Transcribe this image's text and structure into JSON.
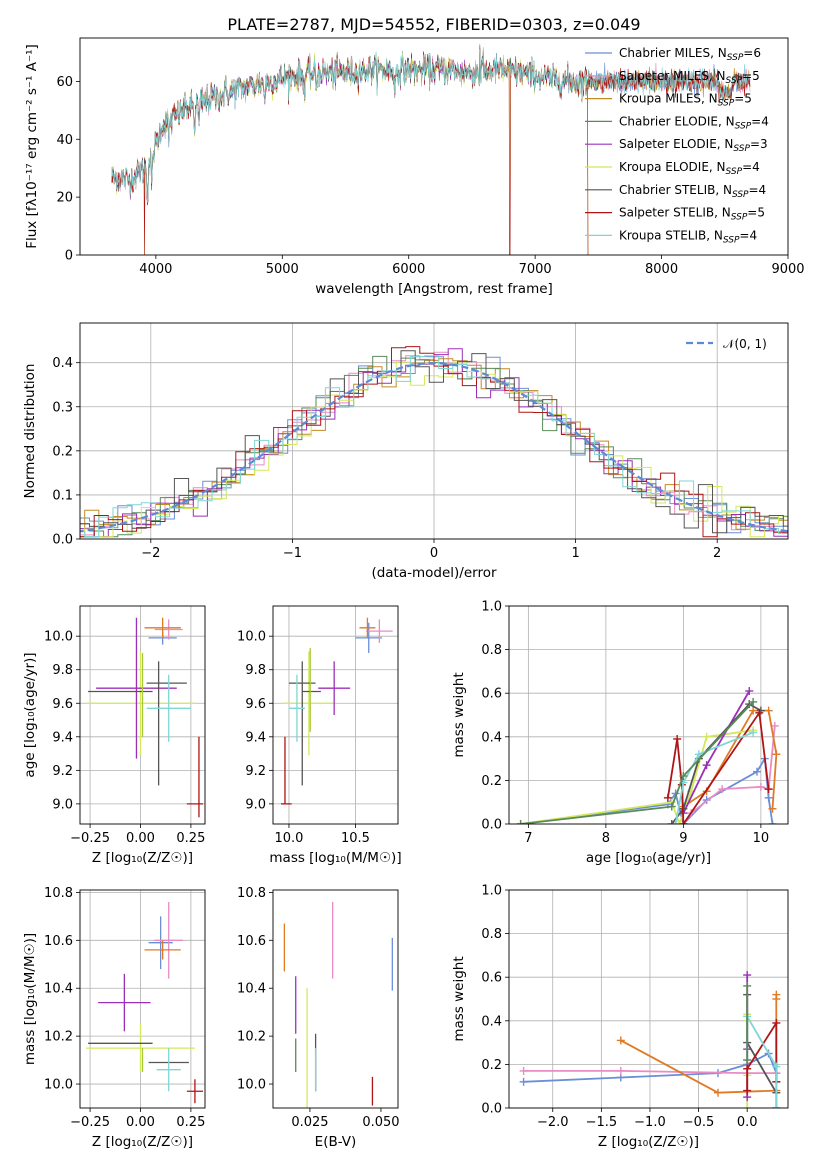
{
  "figure": {
    "title": "PLATE=2787, MJD=54552, FIBERID=0303, z=0.049"
  },
  "chart_data": [
    {
      "id": "spectrum",
      "type": "line",
      "xlabel": "wavelength [Angstrom, rest frame]",
      "ylabel": "Flux [fλ10⁻¹⁷ erg cm⁻² s⁻¹ A⁻¹]",
      "xlim": [
        3400,
        9000
      ],
      "ylim": [
        0,
        75
      ],
      "xticks": [
        "4000",
        "5000",
        "6000",
        "7000",
        "8000",
        "9000"
      ],
      "yticks": [
        "0",
        "20",
        "40",
        "60"
      ],
      "legend_position": "right",
      "series": [
        {
          "name": "Chabrier MILES, N_SSP=6",
          "label_main": "Chabrier MILES, N",
          "label_sub": "SSP",
          "label_tail": "=6",
          "color": "#6a8fd8"
        },
        {
          "name": "Salpeter MILES, N_SSP=5",
          "label_main": "Salpeter MILES, N",
          "label_sub": "SSP",
          "label_tail": "=5",
          "color": "#e98bc4"
        },
        {
          "name": "Kroupa MILES, N_SSP=5",
          "label_main": "Kroupa MILES, N",
          "label_sub": "SSP",
          "label_tail": "=5",
          "color": "#c48a24"
        },
        {
          "name": "Chabrier ELODIE, N_SSP=4",
          "label_main": "Chabrier ELODIE, N",
          "label_sub": "SSP",
          "label_tail": "=4",
          "color": "#5a8a5a"
        },
        {
          "name": "Salpeter ELODIE, N_SSP=3",
          "label_main": "Salpeter ELODIE, N",
          "label_sub": "SSP",
          "label_tail": "=3",
          "color": "#9b30b8"
        },
        {
          "name": "Kroupa ELODIE, N_SSP=4",
          "label_main": "Kroupa ELODIE, N",
          "label_sub": "SSP",
          "label_tail": "=4",
          "color": "#d4e85a"
        },
        {
          "name": "Chabrier STELIB, N_SSP=4",
          "label_main": "Chabrier STELIB, N",
          "label_sub": "SSP",
          "label_tail": "=4",
          "color": "#555555"
        },
        {
          "name": "Salpeter STELIB, N_SSP=5",
          "label_main": "Salpeter STELIB, N",
          "label_sub": "SSP",
          "label_tail": "=5",
          "color": "#b01515"
        },
        {
          "name": "Kroupa STELIB, N_SSP=4",
          "label_main": "Kroupa STELIB, N",
          "label_sub": "SSP",
          "label_tail": "=4",
          "color": "#7fd6d6"
        }
      ],
      "continuum": {
        "x": [
          3650,
          3800,
          3950,
          4050,
          4150,
          4300,
          4500,
          4700,
          4900,
          5100,
          5300,
          5500,
          5700,
          5900,
          6100,
          6300,
          6500,
          6700,
          6900,
          7100,
          7300,
          7420
        ],
        "y": [
          27,
          26,
          32,
          45,
          48,
          52,
          55,
          58,
          60,
          62,
          63,
          63,
          64,
          64,
          64,
          64,
          63,
          64,
          63,
          61,
          60,
          60
        ]
      },
      "absorption_lines": [
        {
          "x": 3934,
          "depth": 12
        },
        {
          "x": 3969,
          "depth": 10
        },
        {
          "x": 4102,
          "depth": 6
        },
        {
          "x": 4305,
          "depth": 10
        },
        {
          "x": 4340,
          "depth": 8
        },
        {
          "x": 4861,
          "depth": 6
        },
        {
          "x": 5175,
          "depth": 7
        },
        {
          "x": 5270,
          "depth": 4
        },
        {
          "x": 5890,
          "depth": 9
        },
        {
          "x": 6563,
          "depth": 5
        }
      ],
      "emission_lines": [
        {
          "x": 6563,
          "height": 15
        },
        {
          "x": 6584,
          "height": 6
        }
      ],
      "spikes": [
        {
          "x": 3910,
          "ymin": 0
        },
        {
          "x": 6800,
          "ymin": 0
        },
        {
          "x": 7420,
          "ymin": 0
        }
      ]
    },
    {
      "id": "residuals",
      "type": "histogram",
      "xlabel": "(data-model)/error",
      "ylabel": "Normed distribution",
      "xlim": [
        -2.5,
        2.5
      ],
      "ylim": [
        0,
        0.49
      ],
      "xticks": [
        "−2",
        "−1",
        "0",
        "1",
        "2"
      ],
      "yticks": [
        "0.0",
        "0.1",
        "0.2",
        "0.3",
        "0.4"
      ],
      "bin_width": 0.1,
      "reference_curve": {
        "name": "N(0,1)",
        "color": "#5b8bd6",
        "label_main": "𝒩(0, 1)"
      },
      "legend_position": "top-right"
    },
    {
      "id": "age_vs_Z",
      "type": "scatter",
      "xlabel": "Z [log₁₀(Z/Z☉)]",
      "ylabel": "age  [log₁₀(age/yr)]",
      "xlim": [
        -0.3,
        0.32
      ],
      "ylim": [
        8.88,
        10.18
      ],
      "xticks": [
        "−0.25",
        "0.00",
        "0.25"
      ],
      "yticks": [
        "9.0",
        "9.2",
        "9.4",
        "9.6",
        "9.8",
        "10.0"
      ],
      "points": [
        {
          "color": "#6a8fd8",
          "x": 0.11,
          "xerr": 0.07,
          "y": 9.99,
          "yerr": 0.04
        },
        {
          "color": "#e98bc4",
          "x": 0.14,
          "xerr": 0.07,
          "y": 10.04,
          "yerr": 0.06
        },
        {
          "color": "#e07a25",
          "x": 0.11,
          "xerr": 0.09,
          "y": 10.05,
          "yerr": 0.06
        },
        {
          "color": "#d4e85a",
          "x": 0.0,
          "xerr": 0.27,
          "y": 9.6,
          "yerr": 0.31
        },
        {
          "color": "#9b30b8",
          "x": -0.02,
          "xerr": 0.2,
          "y": 9.69,
          "yerr": 0.42
        },
        {
          "color": "#555555",
          "x": -0.1,
          "xerr": 0.16,
          "y": 9.67,
          "yerr": 0.0
        },
        {
          "color": "#555555",
          "x": 0.13,
          "xerr": 0.1,
          "y": 9.72,
          "yerr": 0.0
        },
        {
          "color": "#555555",
          "x": 0.09,
          "xerr": 0.0,
          "y": 9.48,
          "yerr": 0.37
        },
        {
          "color": "#7fd6d6",
          "x": 0.14,
          "xerr": 0.11,
          "y": 9.57,
          "yerr": 0.2
        },
        {
          "color": "#b01515",
          "x": 0.27,
          "xerr": 0.04,
          "y": 9.0,
          "yerr": 0.0
        },
        {
          "color": "#b01515",
          "x": 0.29,
          "xerr": 0.0,
          "y": 9.16,
          "yerr": 0.24
        },
        {
          "color": "#a8c93a",
          "x": 0.01,
          "xerr": 0.0,
          "y": 9.65,
          "yerr": 0.25
        }
      ]
    },
    {
      "id": "age_vs_mass",
      "type": "scatter",
      "xlabel": "mass [log₁₀(M/M☉)]",
      "ylabel": "",
      "xlim": [
        9.88,
        10.82
      ],
      "ylim": [
        8.88,
        10.18
      ],
      "xticks": [
        "10.0",
        "10.5"
      ],
      "yticks": [
        "9.0",
        "9.2",
        "9.4",
        "9.6",
        "9.8",
        "10.0"
      ],
      "points": [
        {
          "color": "#6a8fd8",
          "x": 10.6,
          "xerr": 0.1,
          "y": 9.99,
          "yerr": 0.09
        },
        {
          "color": "#e98bc4",
          "x": 10.68,
          "xerr": 0.1,
          "y": 10.03,
          "yerr": 0.07
        },
        {
          "color": "#e07a25",
          "x": 10.59,
          "xerr": 0.06,
          "y": 10.05,
          "yerr": 0.06
        },
        {
          "color": "#d4e85a",
          "x": 10.15,
          "xerr": 0.2,
          "y": 9.6,
          "yerr": 0.31
        },
        {
          "color": "#9b30b8",
          "x": 10.34,
          "xerr": 0.12,
          "y": 9.69,
          "yerr": 0.16
        },
        {
          "color": "#555555",
          "x": 10.1,
          "xerr": 0.1,
          "y": 9.72,
          "yerr": 0.0
        },
        {
          "color": "#555555",
          "x": 10.1,
          "xerr": 0.0,
          "y": 9.48,
          "yerr": 0.37
        },
        {
          "color": "#555555",
          "x": 10.17,
          "xerr": 0.07,
          "y": 9.67,
          "yerr": 0.0
        },
        {
          "color": "#7fd6d6",
          "x": 10.06,
          "xerr": 0.06,
          "y": 9.57,
          "yerr": 0.2
        },
        {
          "color": "#b01515",
          "x": 9.98,
          "xerr": 0.04,
          "y": 9.0,
          "yerr": 0.0
        },
        {
          "color": "#b01515",
          "x": 9.97,
          "xerr": 0.0,
          "y": 9.2,
          "yerr": 0.2
        },
        {
          "color": "#a8c93a",
          "x": 10.16,
          "xerr": 0.0,
          "y": 9.68,
          "yerr": 0.25
        }
      ]
    },
    {
      "id": "mass_weight_vs_age",
      "type": "line",
      "xlabel": "age  [log₁₀(age/yr)]",
      "ylabel": "mass weight",
      "xlim": [
        6.75,
        10.35
      ],
      "ylim": [
        0,
        1.0
      ],
      "xticks": [
        "7",
        "8",
        "9",
        "10"
      ],
      "yticks": [
        "0.0",
        "0.2",
        "0.4",
        "0.6",
        "0.8",
        "1.0"
      ],
      "series": [
        {
          "color": "#6a8fd8",
          "x": [
            6.9,
            8.8,
            8.9,
            9.0,
            9.3,
            9.95,
            10.05,
            10.1,
            10.15
          ],
          "y": [
            0.0,
            0.09,
            0.14,
            0.0,
            0.11,
            0.24,
            0.3,
            0.12,
            0.0
          ]
        },
        {
          "color": "#e98bc4",
          "x": [
            9.0,
            9.1,
            9.5,
            10.0,
            10.1,
            10.18
          ],
          "y": [
            0.0,
            0.05,
            0.16,
            0.17,
            0.16,
            0.45
          ]
        },
        {
          "color": "#e07a25",
          "x": [
            9.0,
            9.3,
            9.9,
            10.1,
            10.2,
            10.15
          ],
          "y": [
            0.08,
            0.15,
            0.52,
            0.52,
            0.32,
            0.07
          ]
        },
        {
          "color": "#d4e85a",
          "x": [
            6.9,
            8.85,
            8.95,
            9.1,
            9.3,
            9.9
          ],
          "y": [
            0.0,
            0.1,
            0.0,
            0.15,
            0.4,
            0.43
          ]
        },
        {
          "color": "#9b30b8",
          "x": [
            9.0,
            9.3,
            9.85
          ],
          "y": [
            0.05,
            0.27,
            0.61
          ]
        },
        {
          "color": "#555555",
          "x": [
            8.85,
            9.0,
            9.2,
            9.85,
            10.0
          ],
          "y": [
            0.0,
            0.07,
            0.3,
            0.55,
            0.52
          ]
        },
        {
          "color": "#b01515",
          "x": [
            8.8,
            8.92,
            8.98,
            9.0,
            9.98,
            10.1
          ],
          "y": [
            0.12,
            0.39,
            0.18,
            0.0,
            0.51,
            0.16
          ]
        },
        {
          "color": "#7fd6d6",
          "x": [
            8.9,
            9.0,
            9.2,
            9.9
          ],
          "y": [
            0.0,
            0.19,
            0.32,
            0.42
          ]
        },
        {
          "color": "#5a8a5a",
          "x": [
            6.9,
            8.85,
            9.0,
            9.9
          ],
          "y": [
            0.0,
            0.08,
            0.22,
            0.56
          ]
        }
      ]
    },
    {
      "id": "mass_vs_Z",
      "type": "scatter",
      "xlabel": "Z [log₁₀(Z/Z☉)]",
      "ylabel": "mass [log₁₀(M/M☉)]",
      "xlim": [
        -0.3,
        0.32
      ],
      "ylim": [
        9.9,
        10.81
      ],
      "xticks": [
        "−0.25",
        "0.00",
        "0.25"
      ],
      "yticks": [
        "10.0",
        "10.2",
        "10.4",
        "10.6",
        "10.8"
      ],
      "points": [
        {
          "color": "#6a8fd8",
          "x": 0.1,
          "xerr": 0.06,
          "y": 10.59,
          "yerr": 0.11
        },
        {
          "color": "#e98bc4",
          "x": 0.14,
          "xerr": 0.07,
          "y": 10.6,
          "yerr": 0.16
        },
        {
          "color": "#e07a25",
          "x": 0.11,
          "xerr": 0.09,
          "y": 10.56,
          "yerr": 0.04
        },
        {
          "color": "#d4e85a",
          "x": 0.0,
          "xerr": 0.27,
          "y": 10.15,
          "yerr": 0.1
        },
        {
          "color": "#9b30b8",
          "x": -0.08,
          "xerr": 0.13,
          "y": 10.34,
          "yerr": 0.12
        },
        {
          "color": "#555555",
          "x": -0.1,
          "xerr": 0.16,
          "y": 10.17,
          "yerr": 0.0
        },
        {
          "color": "#555555",
          "x": 0.14,
          "xerr": 0.1,
          "y": 10.09,
          "yerr": 0.0
        },
        {
          "color": "#7fd6d6",
          "x": 0.14,
          "xerr": 0.06,
          "y": 10.06,
          "yerr": 0.09
        },
        {
          "color": "#b01515",
          "x": 0.27,
          "xerr": 0.04,
          "y": 9.97,
          "yerr": 0.05
        },
        {
          "color": "#a8c93a",
          "x": 0.01,
          "xerr": 0.0,
          "y": 10.1,
          "yerr": 0.05
        }
      ]
    },
    {
      "id": "mass_vs_EBV",
      "type": "scatter",
      "xlabel": "E(B-V)",
      "ylabel": "",
      "xlim": [
        0.012,
        0.056
      ],
      "ylim": [
        9.9,
        10.81
      ],
      "xticks": [
        "0.025",
        "0.050"
      ],
      "yticks": [
        "10.0",
        "10.2",
        "10.4",
        "10.6",
        "10.8"
      ],
      "points": [
        {
          "color": "#e07a25",
          "x": 0.016,
          "xerr": 0.0,
          "y": 10.57,
          "yerr": 0.1
        },
        {
          "color": "#9b30b8",
          "x": 0.02,
          "xerr": 0.0,
          "y": 10.33,
          "yerr": 0.12
        },
        {
          "color": "#5a8a5a",
          "x": 0.02,
          "xerr": 0.0,
          "y": 10.12,
          "yerr": 0.07
        },
        {
          "color": "#d4e85a",
          "x": 0.024,
          "xerr": 0.0,
          "y": 10.15,
          "yerr": 0.25
        },
        {
          "color": "#555555",
          "x": 0.027,
          "xerr": 0.0,
          "y": 10.09,
          "yerr": 0.12
        },
        {
          "color": "#7fd6d6",
          "x": 0.027,
          "xerr": 0.0,
          "y": 10.06,
          "yerr": 0.09
        },
        {
          "color": "#e98bc4",
          "x": 0.033,
          "xerr": 0.0,
          "y": 10.6,
          "yerr": 0.16
        },
        {
          "color": "#b01515",
          "x": 0.047,
          "xerr": 0.0,
          "y": 9.97,
          "yerr": 0.06
        },
        {
          "color": "#6a8fd8",
          "x": 0.054,
          "xerr": 0.0,
          "y": 10.5,
          "yerr": 0.11
        }
      ]
    },
    {
      "id": "mass_weight_vs_Z",
      "type": "line",
      "xlabel": "Z [log₁₀(Z/Z☉)]",
      "ylabel": "mass weight",
      "xlim": [
        -2.45,
        0.42
      ],
      "ylim": [
        0,
        1.0
      ],
      "xticks": [
        "−2.0",
        "−1.5",
        "−1.0",
        "−0.5",
        "0.0"
      ],
      "yticks": [
        "0.0",
        "0.2",
        "0.4",
        "0.6",
        "0.8",
        "1.0"
      ],
      "series": [
        {
          "color": "#6a8fd8",
          "x": [
            -2.3,
            -1.3,
            -0.3,
            0.0,
            0.22,
            0.3,
            0.3
          ],
          "y": [
            0.12,
            0.14,
            0.16,
            0.2,
            0.25,
            0.16,
            0.12
          ]
        },
        {
          "color": "#e98bc4",
          "x": [
            -2.3,
            -1.3,
            0.0,
            0.3
          ],
          "y": [
            0.17,
            0.17,
            0.16,
            0.16
          ]
        },
        {
          "color": "#e07a25",
          "x": [
            -1.3,
            -0.3,
            0.3,
            0.3,
            0.3
          ],
          "y": [
            0.31,
            0.07,
            0.08,
            0.5,
            0.52
          ]
        },
        {
          "color": "#d4e85a",
          "x": [
            0.0,
            0.0,
            0.0,
            0.0
          ],
          "y": [
            0.0,
            0.15,
            0.4,
            0.43
          ]
        },
        {
          "color": "#9b30b8",
          "x": [
            0.0,
            0.0,
            0.0
          ],
          "y": [
            0.05,
            0.27,
            0.61
          ]
        },
        {
          "color": "#555555",
          "x": [
            0.0,
            0.0,
            0.3,
            0.3
          ],
          "y": [
            0.52,
            0.3,
            0.07,
            0.0
          ]
        },
        {
          "color": "#b01515",
          "x": [
            0.0,
            0.0,
            0.3,
            0.3
          ],
          "y": [
            0.08,
            0.18,
            0.39,
            0.12
          ]
        },
        {
          "color": "#7fd6d6",
          "x": [
            0.0,
            0.0,
            0.3,
            0.3
          ],
          "y": [
            0.22,
            0.42,
            0.19,
            0.0
          ]
        },
        {
          "color": "#5a8a5a",
          "x": [
            0.0,
            0.0
          ],
          "y": [
            0.22,
            0.56
          ]
        }
      ]
    }
  ]
}
